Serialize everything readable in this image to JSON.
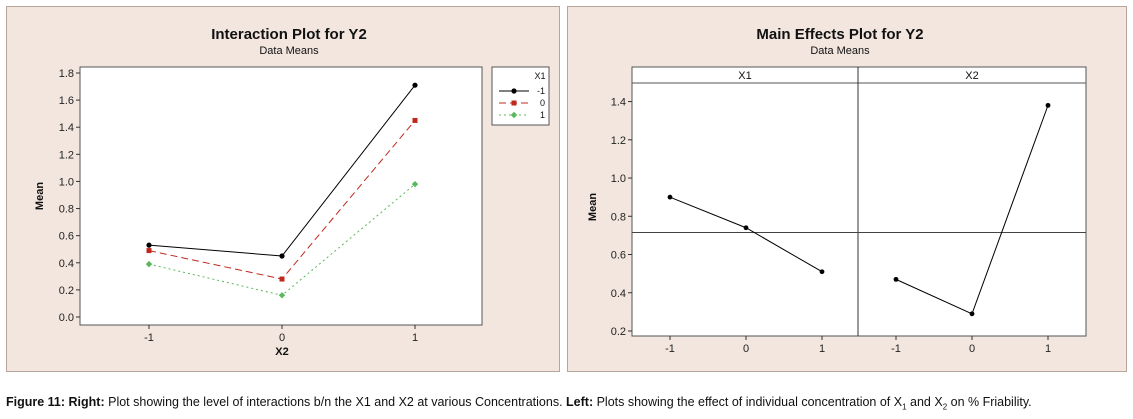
{
  "chart_data": [
    {
      "type": "line",
      "title": "Interaction Plot for Y2",
      "subtitle": "Data Means",
      "xlabel": "X2",
      "ylabel": "Mean",
      "categories": [
        "-1",
        "0",
        "1"
      ],
      "yticks": [
        "0.0",
        "0.2",
        "0.4",
        "0.6",
        "0.8",
        "1.0",
        "1.2",
        "1.4",
        "1.6",
        "1.8"
      ],
      "ylim": [
        0.0,
        1.8
      ],
      "legend_title": "X1",
      "legend_position": "right",
      "series": [
        {
          "name": "-1",
          "values": [
            0.53,
            0.45,
            1.71
          ],
          "color": "#000000",
          "dash": "solid",
          "marker": "circle"
        },
        {
          "name": "0",
          "values": [
            0.49,
            0.28,
            1.45
          ],
          "color": "#c0281e",
          "dash": "dashed",
          "marker": "square"
        },
        {
          "name": "1",
          "values": [
            0.39,
            0.16,
            0.98
          ],
          "color": "#5cb85c",
          "dash": "dotted",
          "marker": "diamond"
        }
      ]
    },
    {
      "type": "line",
      "title": "Main Effects Plot for Y2",
      "subtitle": "Data Means",
      "ylabel": "Mean",
      "ylim": [
        0.2,
        1.45
      ],
      "yticks": [
        "0.2",
        "0.4",
        "0.6",
        "0.8",
        "1.0",
        "1.2",
        "1.4"
      ],
      "reference_line": 0.715,
      "facets": [
        {
          "name": "X1",
          "categories": [
            "-1",
            "0",
            "1"
          ],
          "values": [
            0.9,
            0.74,
            0.51
          ]
        },
        {
          "name": "X2",
          "categories": [
            "-1",
            "0",
            "1"
          ],
          "values": [
            0.47,
            0.29,
            1.38
          ]
        }
      ]
    }
  ],
  "caption": {
    "label": "Figure 11:",
    "right_label": "Right:",
    "right_text": " Plot showing the level of interactions b/n the X1 and X2 at various Concentrations. ",
    "left_label": "Left:",
    "left_text_1": " Plots showing the effect of individual concentration of X",
    "sub1": "1",
    "left_text_2": " and X",
    "sub2": "2",
    "left_text_3": " on % Friability."
  }
}
